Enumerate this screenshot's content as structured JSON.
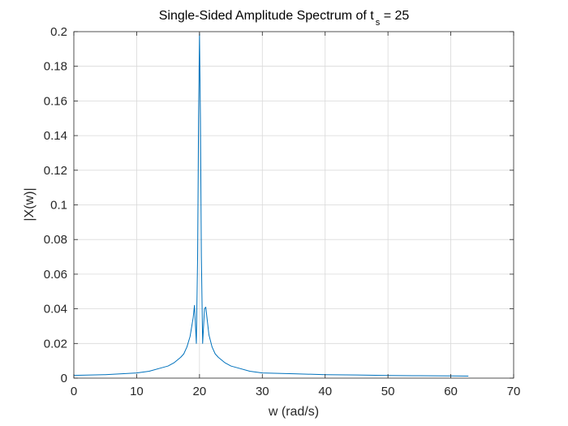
{
  "chart_data": {
    "type": "line",
    "title": {
      "main": "Single-Sided Amplitude Spectrum of t",
      "subscript": "s",
      "suffix": " = 25"
    },
    "xlabel": "w (rad/s)",
    "ylabel": "|X(w)|",
    "xlim": [
      0,
      70
    ],
    "ylim": [
      0,
      0.2
    ],
    "xticks": [
      0,
      10,
      20,
      30,
      40,
      50,
      60,
      70
    ],
    "xtick_labels": [
      "0",
      "10",
      "20",
      "30",
      "40",
      "50",
      "60",
      "70"
    ],
    "yticks": [
      0,
      0.02,
      0.04,
      0.06,
      0.08,
      0.1,
      0.12,
      0.14,
      0.16,
      0.18,
      0.2
    ],
    "ytick_labels": [
      "0",
      "0.02",
      "0.04",
      "0.06",
      "0.08",
      "0.1",
      "0.12",
      "0.14",
      "0.16",
      "0.18",
      "0.2"
    ],
    "grid": true,
    "series": [
      {
        "color": "#0072bd",
        "x": [
          0,
          5,
          10,
          12,
          14,
          15,
          16,
          17,
          17.5,
          18,
          18.5,
          19,
          19.2,
          19.5,
          19.7,
          19.85,
          20,
          20.15,
          20.3,
          20.5,
          20.8,
          21,
          21.5,
          22,
          22.5,
          23,
          24,
          25,
          26,
          28,
          30,
          35,
          40,
          45,
          50,
          55,
          60,
          62.8
        ],
        "y": [
          0.0016,
          0.002,
          0.003,
          0.004,
          0.006,
          0.007,
          0.009,
          0.012,
          0.014,
          0.018,
          0.024,
          0.035,
          0.042,
          0.02,
          0.07,
          0.15,
          0.199,
          0.15,
          0.07,
          0.02,
          0.04,
          0.041,
          0.025,
          0.018,
          0.014,
          0.012,
          0.009,
          0.007,
          0.006,
          0.004,
          0.003,
          0.0025,
          0.002,
          0.0018,
          0.0015,
          0.0014,
          0.0013,
          0.0012
        ]
      }
    ]
  }
}
